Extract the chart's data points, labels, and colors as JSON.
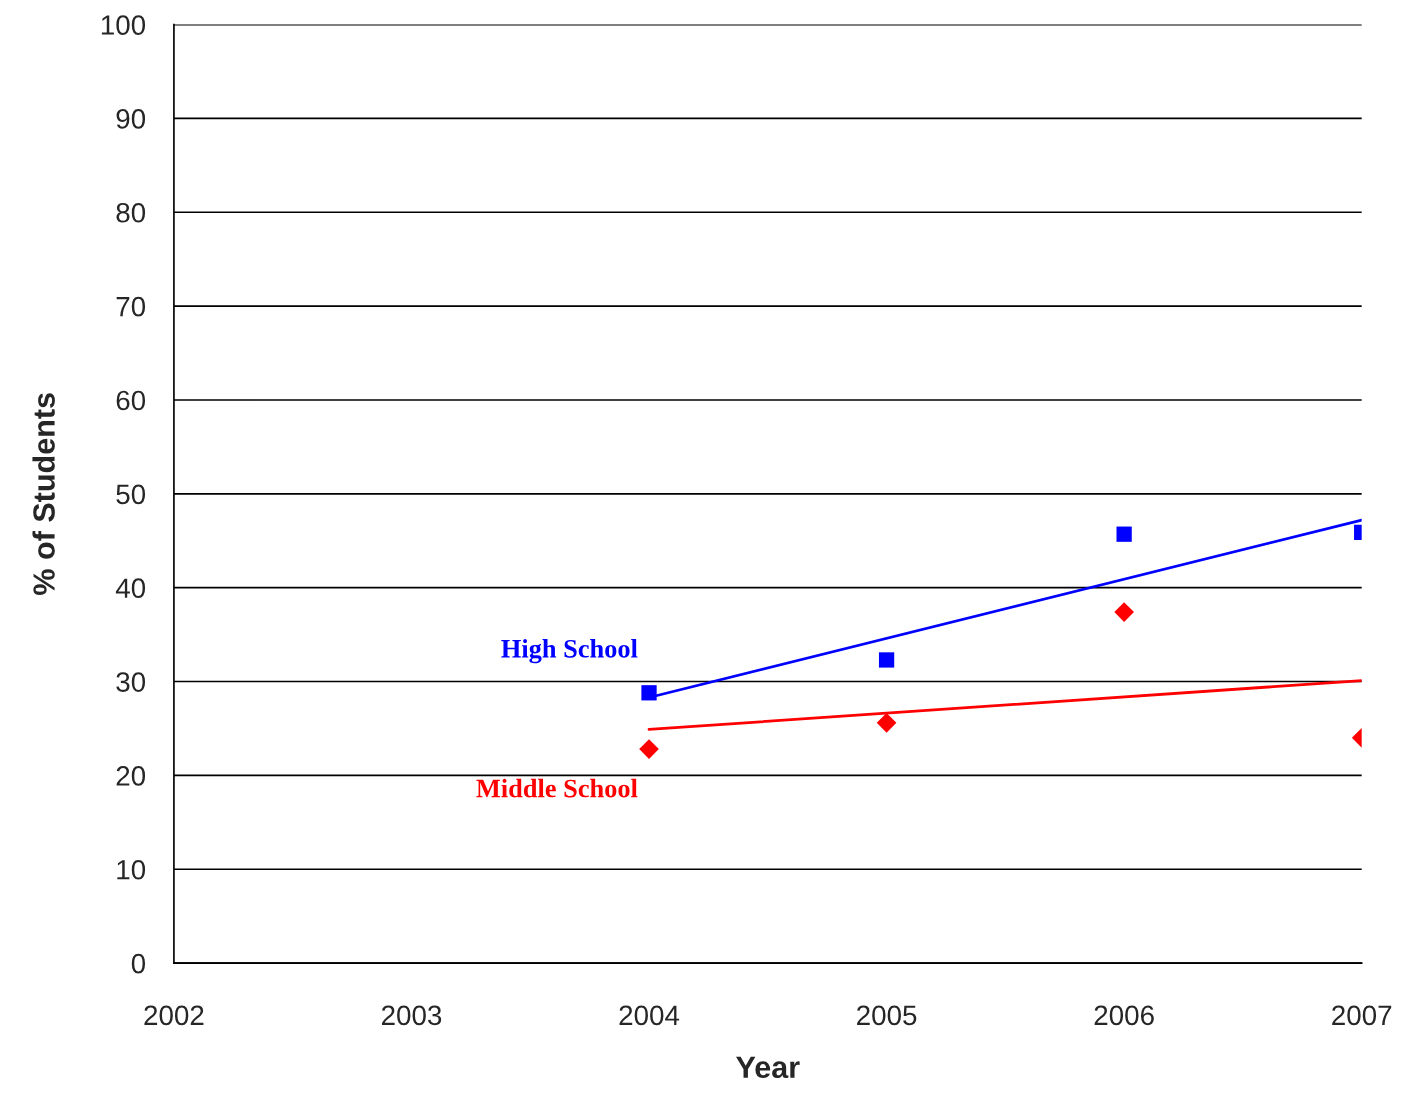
{
  "chart_data": {
    "type": "scatter",
    "xlabel": "Year",
    "ylabel": "% of Students",
    "xlim": [
      2002,
      2007
    ],
    "xticks": [
      2002,
      2003,
      2004,
      2005,
      2006,
      2007
    ],
    "ylim": [
      0,
      100
    ],
    "yticks": [
      0,
      10,
      20,
      30,
      40,
      50,
      60,
      70,
      80,
      90,
      100
    ],
    "grid": "y",
    "legend": false,
    "series": [
      {
        "name": "High School",
        "color": "#0000ff",
        "marker": "square",
        "x": [
          2004,
          2005,
          2006,
          2007
        ],
        "values": [
          28.8,
          32.3,
          45.7,
          45.9
        ]
      },
      {
        "name": "Middle School",
        "color": "#ff0000",
        "marker": "diamond",
        "x": [
          2004,
          2005,
          2006,
          2007
        ],
        "values": [
          22.8,
          25.6,
          37.4,
          24.0
        ]
      },
      {
        "type": "line",
        "color": "#0000ff",
        "x": [
          2004,
          2007
        ],
        "values": [
          28.3,
          47.2
        ]
      },
      {
        "type": "line",
        "color": "#ff0000",
        "x": [
          2004,
          2007
        ],
        "values": [
          24.9,
          30.1
        ]
      }
    ]
  }
}
